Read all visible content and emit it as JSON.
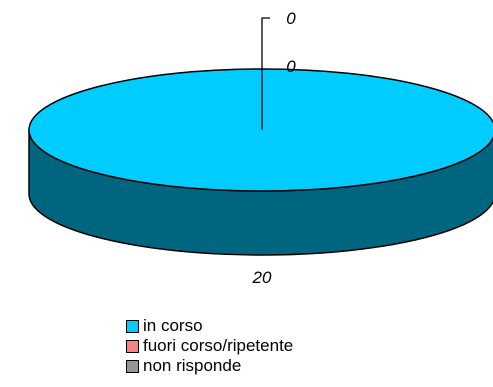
{
  "chart_data": {
    "type": "pie",
    "style": "3d",
    "categories": [
      "in corso",
      "fuori corso/ripetente",
      "non risponde"
    ],
    "values": [
      20,
      0,
      0
    ],
    "data_labels": [
      "20",
      "0",
      "0"
    ],
    "colors": [
      "#00CCFF",
      "#FF8080",
      "#969696"
    ],
    "side_colors": [
      "#006680",
      "#804040",
      "#4B4B4B"
    ],
    "legend_position": "bottom",
    "grid": false
  }
}
